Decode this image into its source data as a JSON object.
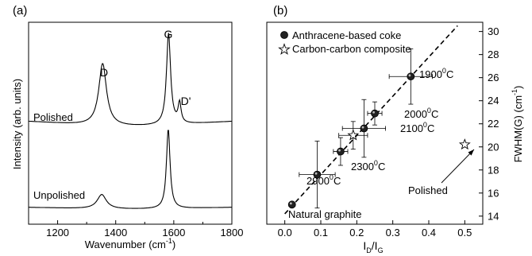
{
  "chart_data": [
    {
      "panel": "(a)",
      "type": "line",
      "xlabel": "Wavenumber (cm",
      "xlabel_sup": "-1",
      "xlabel_end": ")",
      "ylabel": "Intensity (arb. units)",
      "xlim": [
        1100,
        1800
      ],
      "xticks": [
        1200,
        1400,
        1600,
        1800
      ],
      "y_tick_labels": false,
      "series": [
        {
          "name": "Polished",
          "peaks": [
            {
              "center": 1355,
              "width": 32,
              "height": 0.68
            },
            {
              "center": 1582,
              "width": 17,
              "height": 1.0
            },
            {
              "center": 1620,
              "width": 12,
              "height": 0.22
            }
          ],
          "baseline": 0.12
        },
        {
          "name": "Unpolished",
          "peaks": [
            {
              "center": 1352,
              "width": 38,
              "height": 0.18
            },
            {
              "center": 1581,
              "width": 15,
              "height": 1.0
            }
          ],
          "baseline": 0.05
        }
      ],
      "annotations": [
        "D",
        "G",
        "D'"
      ]
    },
    {
      "panel": "(b)",
      "type": "scatter",
      "xlabel_main": "I",
      "xlabel_sub1": "D",
      "xlabel_mid": "/I",
      "xlabel_sub2": "G",
      "ylabel": "FWHM(G) (cm",
      "ylabel_sup": "-1",
      "ylabel_end": ")",
      "xlim": [
        -0.05,
        0.55
      ],
      "ylim": [
        13.3,
        30.8
      ],
      "xticks": [
        "0.0",
        "0.1",
        "0.2",
        "0.3",
        "0.4",
        "0.5"
      ],
      "yticks": [
        "14",
        "16",
        "18",
        "20",
        "22",
        "24",
        "26",
        "28",
        "30"
      ],
      "legend": [
        "Anthracene-based coke",
        "Carbon-carbon composite"
      ],
      "coke": [
        {
          "label": "Natural graphite",
          "x": 0.02,
          "y": 15.0,
          "xerr": 0,
          "yerr": 0
        },
        {
          "label": "2900",
          "x": 0.09,
          "y": 17.6,
          "xerr": 0.05,
          "yerr": 2.9
        },
        {
          "label": "2300",
          "x": 0.155,
          "y": 19.6,
          "xerr": 0.02,
          "yerr": 1.2
        },
        {
          "label": "2100",
          "x": 0.22,
          "y": 21.6,
          "xerr": 0.06,
          "yerr": 2.5
        },
        {
          "label": "2000",
          "x": 0.25,
          "y": 22.9,
          "xerr": 0.02,
          "yerr": 1.0
        },
        {
          "label": "1900",
          "x": 0.35,
          "y": 26.1,
          "xerr": 0.06,
          "yerr": 2.4
        }
      ],
      "composite": [
        {
          "label": "",
          "x": 0.19,
          "y": 21.0,
          "xerr": 0.04,
          "yerr": 1.2
        },
        {
          "label": "Polished",
          "x": 0.5,
          "y": 20.2,
          "xerr": 0,
          "yerr": 0
        }
      ],
      "fit": {
        "x": [
          0.0,
          0.48
        ],
        "y": [
          14.2,
          30.5
        ]
      },
      "degree_sup": "0",
      "degree_unit": "C",
      "arrow_label": "Polished"
    }
  ]
}
